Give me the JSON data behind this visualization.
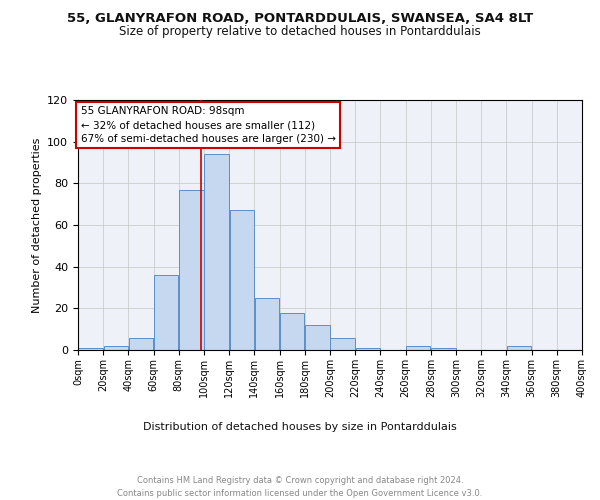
{
  "title1": "55, GLANYRAFON ROAD, PONTARDDULAIS, SWANSEA, SA4 8LT",
  "title2": "Size of property relative to detached houses in Pontarddulais",
  "xlabel": "Distribution of detached houses by size in Pontarddulais",
  "ylabel": "Number of detached properties",
  "bar_heights": [
    1,
    2,
    6,
    36,
    77,
    94,
    67,
    25,
    18,
    12,
    6,
    1,
    0,
    2,
    1,
    0,
    0,
    2,
    0,
    0
  ],
  "bin_edges": [
    0,
    20,
    40,
    60,
    80,
    100,
    120,
    140,
    160,
    180,
    200,
    220,
    240,
    260,
    280,
    300,
    320,
    340,
    360,
    380,
    400
  ],
  "bar_color": "#c5d8f0",
  "bar_edge_color": "#5b8fc9",
  "grid_color": "#cccccc",
  "bg_color": "#eef2f8",
  "property_value": 98,
  "vline_color": "#cc0000",
  "annotation_text": "55 GLANYRAFON ROAD: 98sqm\n← 32% of detached houses are smaller (112)\n67% of semi-detached houses are larger (230) →",
  "annotation_box_color": "#ffffff",
  "annotation_box_edge_color": "#cc0000",
  "footnote": "Contains HM Land Registry data © Crown copyright and database right 2024.\nContains public sector information licensed under the Open Government Licence v3.0.",
  "ylim": [
    0,
    120
  ],
  "yticks": [
    0,
    20,
    40,
    60,
    80,
    100,
    120
  ],
  "xtick_labels": [
    "0sqm",
    "20sqm",
    "40sqm",
    "60sqm",
    "80sqm",
    "100sqm",
    "120sqm",
    "140sqm",
    "160sqm",
    "180sqm",
    "200sqm",
    "220sqm",
    "240sqm",
    "260sqm",
    "280sqm",
    "300sqm",
    "320sqm",
    "340sqm",
    "360sqm",
    "380sqm",
    "400sqm"
  ]
}
